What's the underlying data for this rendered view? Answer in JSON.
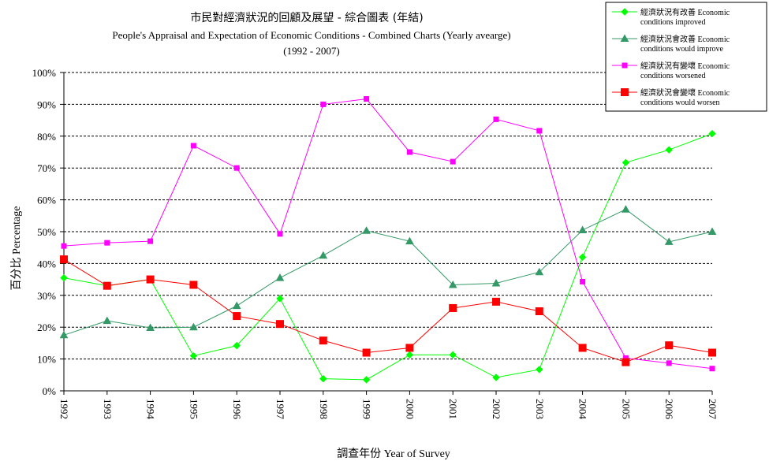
{
  "chart_data": {
    "type": "line",
    "title": "市民對經濟狀況的回顧及展望 - 綜合圖表 (年結)",
    "subtitle": "People's Appraisal and Expectation of Economic Conditions - Combined Charts (Yearly avearge)",
    "subtitle2": "(1992 - 2007)",
    "xlabel": "調查年份 Year of Survey",
    "ylabel": "百分比 Percentage",
    "ylim": [
      0,
      100
    ],
    "yticks": [
      "0%",
      "10%",
      "20%",
      "30%",
      "40%",
      "50%",
      "60%",
      "70%",
      "80%",
      "90%",
      "100%"
    ],
    "grid": true,
    "legend_position": "top-right",
    "categories": [
      "1992",
      "1993",
      "1994",
      "1995",
      "1996",
      "1997",
      "1998",
      "1999",
      "2000",
      "2001",
      "2002",
      "2003",
      "2004",
      "2005",
      "2006",
      "2007"
    ],
    "series": [
      {
        "name_line1": "經濟狀況有改善 Economic",
        "name_line2": "conditions improved",
        "color": "#00ff00",
        "marker": "diamond",
        "values": [
          35.5,
          33.0,
          35.0,
          11.0,
          14.2,
          29.0,
          3.8,
          3.5,
          11.3,
          11.3,
          4.2,
          6.7,
          42.0,
          71.7,
          75.7,
          80.8
        ]
      },
      {
        "name_line1": "經濟狀況會改善 Economic",
        "name_line2": "conditions would improve",
        "color": "#339966",
        "marker": "triangle",
        "values": [
          17.5,
          22.0,
          19.8,
          20.0,
          26.7,
          35.5,
          42.5,
          50.3,
          47.0,
          33.3,
          33.8,
          37.3,
          50.5,
          57.0,
          46.8,
          50.0
        ]
      },
      {
        "name_line1": "經濟狀況有變壞 Economic",
        "name_line2": "conditions worsened",
        "color": "#ff00ff",
        "marker": "square",
        "values": [
          45.5,
          46.5,
          47.0,
          77.0,
          70.0,
          49.3,
          90.0,
          91.7,
          75.0,
          72.0,
          85.3,
          81.7,
          34.3,
          10.3,
          8.7,
          7.0
        ]
      },
      {
        "name_line1": "經濟狀況會變壞 Economic",
        "name_line2": "conditions would worsen",
        "color": "#ff0000",
        "marker": "square-large",
        "values": [
          41.3,
          33.0,
          35.0,
          33.3,
          23.5,
          21.0,
          15.8,
          12.0,
          13.5,
          26.0,
          28.0,
          25.0,
          13.5,
          9.0,
          14.3,
          12.0
        ]
      }
    ]
  }
}
